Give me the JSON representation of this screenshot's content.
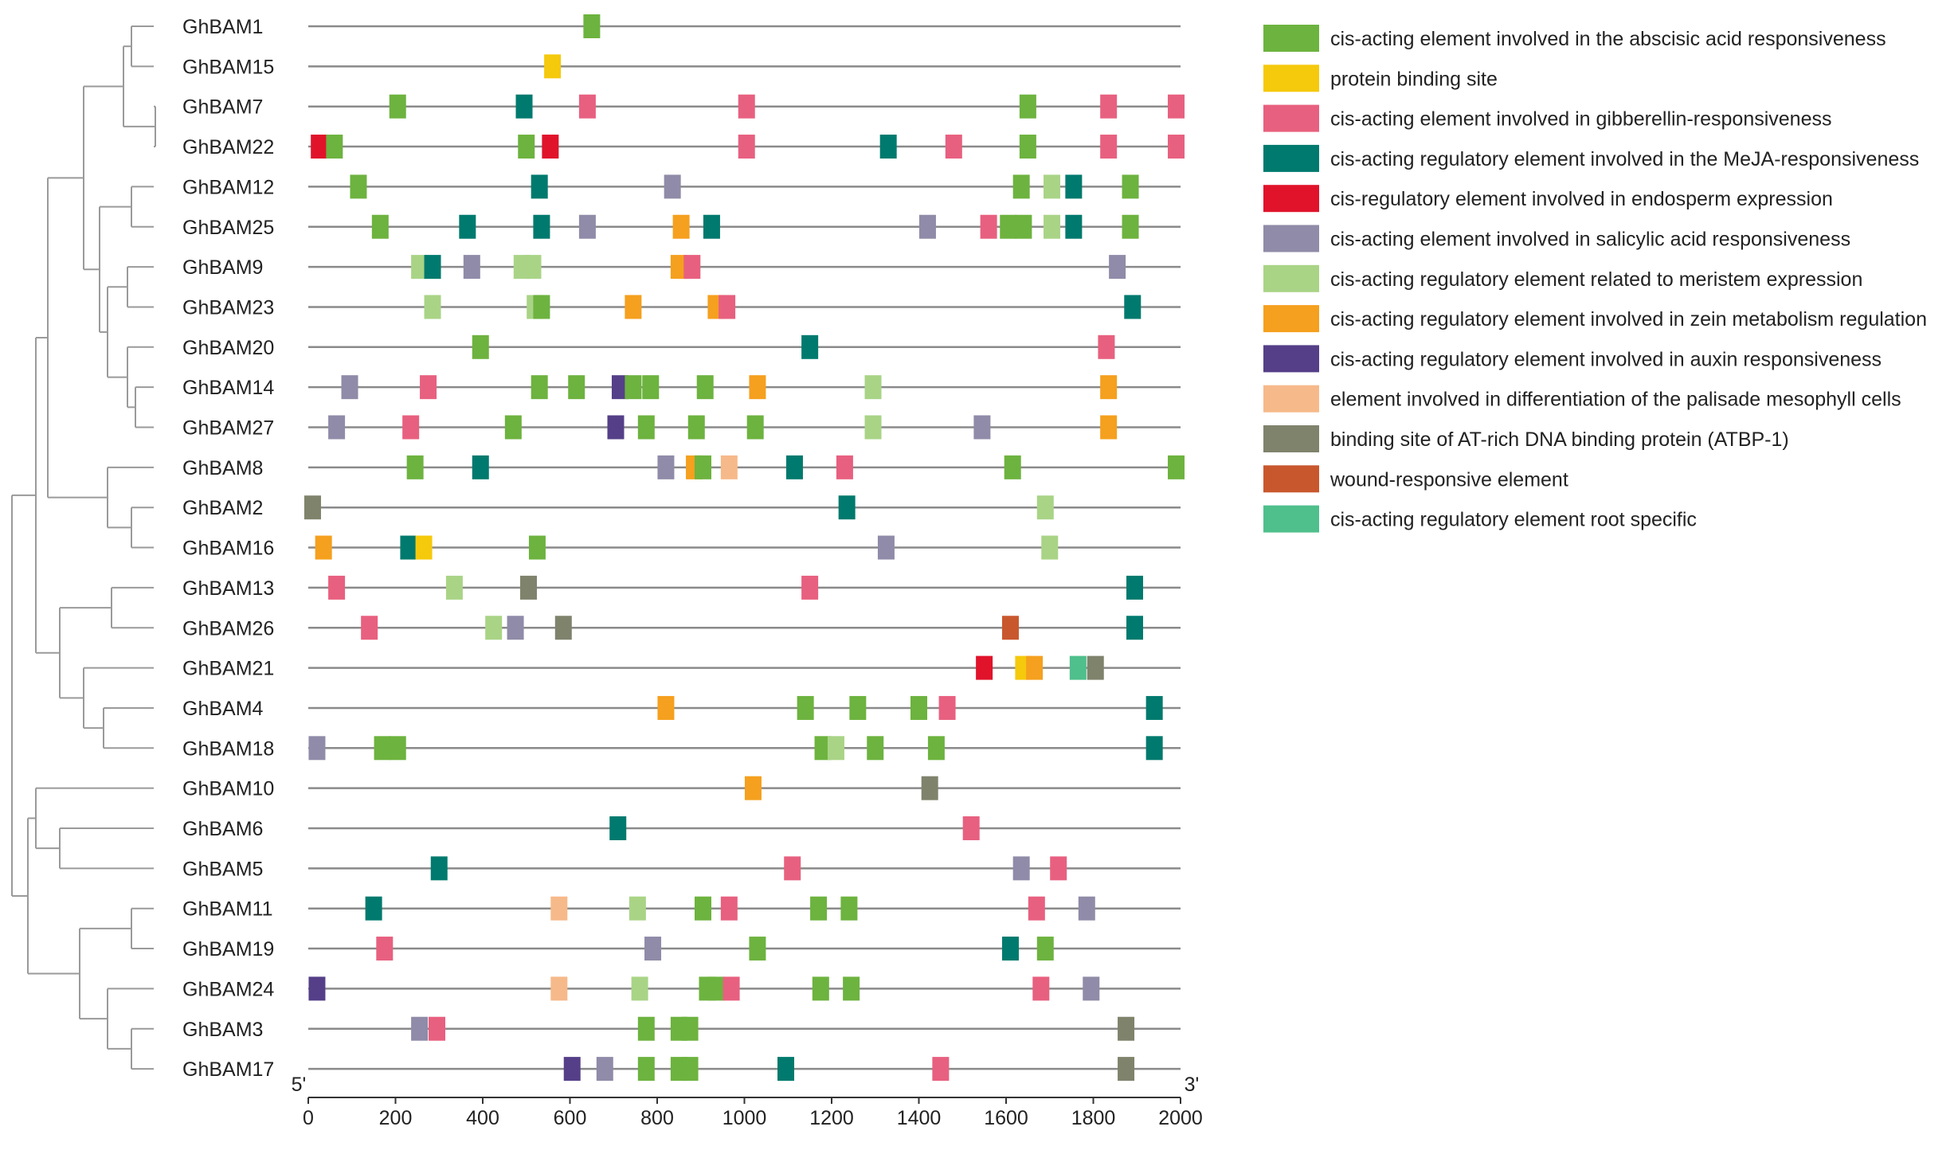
{
  "axis": {
    "start_label": "5'",
    "end_label": "3'",
    "min": 0,
    "max": 2000,
    "ticks": [
      0,
      200,
      400,
      600,
      800,
      1000,
      1200,
      1400,
      1600,
      1800,
      2000
    ]
  },
  "elements": {
    "aba": {
      "label": "cis-acting element involved in the abscisic acid responsiveness",
      "color": "#6db33f"
    },
    "pbs": {
      "label": "protein binding site",
      "color": "#f5c90c"
    },
    "ga": {
      "label": "cis-acting element involved in gibberellin-responsiveness",
      "color": "#e8607f"
    },
    "meja": {
      "label": "cis-acting regulatory element involved in the MeJA-responsiveness",
      "color": "#007a6e"
    },
    "endo": {
      "label": "cis-regulatory element involved in endosperm expression",
      "color": "#e0132b"
    },
    "sa": {
      "label": "cis-acting element involved in salicylic acid responsiveness",
      "color": "#908ba8"
    },
    "mer": {
      "label": "cis-acting regulatory element related to meristem expression",
      "color": "#a9d486"
    },
    "zein": {
      "label": "cis-acting regulatory element involved in zein metabolism regulation",
      "color": "#f5a01e"
    },
    "aux": {
      "label": "cis-acting regulatory element involved in auxin responsiveness",
      "color": "#553f88"
    },
    "pal": {
      "label": "element involved in differentiation of the palisade mesophyll cells",
      "color": "#f6b98a"
    },
    "atbp": {
      "label": "binding site of AT-rich DNA binding protein (ATBP-1)",
      "color": "#7f836c"
    },
    "wound": {
      "label": "wound-responsive element",
      "color": "#c9572e"
    },
    "root": {
      "label": "cis-acting regulatory element root specific",
      "color": "#4fbf8c"
    }
  },
  "legend_order": [
    "aba",
    "pbs",
    "ga",
    "meja",
    "endo",
    "sa",
    "mer",
    "zein",
    "aux",
    "pal",
    "atbp",
    "wound",
    "root"
  ],
  "genes": [
    {
      "name": "GhBAM1",
      "boxes": [
        [
          "aba",
          650
        ]
      ]
    },
    {
      "name": "GhBAM15",
      "boxes": [
        [
          "pbs",
          560
        ]
      ]
    },
    {
      "name": "GhBAM7",
      "boxes": [
        [
          "aba",
          205
        ],
        [
          "meja",
          495
        ],
        [
          "ga",
          640
        ],
        [
          "ga",
          1005
        ],
        [
          "aba",
          1650
        ],
        [
          "ga",
          1835
        ],
        [
          "ga",
          1990
        ]
      ]
    },
    {
      "name": "GhBAM22",
      "boxes": [
        [
          "endo",
          25
        ],
        [
          "aba",
          60
        ],
        [
          "aba",
          500
        ],
        [
          "endo",
          555
        ],
        [
          "ga",
          1005
        ],
        [
          "meja",
          1330
        ],
        [
          "ga",
          1480
        ],
        [
          "aba",
          1650
        ],
        [
          "ga",
          1835
        ],
        [
          "ga",
          1990
        ]
      ]
    },
    {
      "name": "GhBAM12",
      "boxes": [
        [
          "aba",
          115
        ],
        [
          "meja",
          530
        ],
        [
          "sa",
          835
        ],
        [
          "aba",
          1635
        ],
        [
          "mer",
          1705
        ],
        [
          "meja",
          1755
        ],
        [
          "aba",
          1885
        ]
      ]
    },
    {
      "name": "GhBAM25",
      "boxes": [
        [
          "aba",
          165
        ],
        [
          "meja",
          365
        ],
        [
          "meja",
          535
        ],
        [
          "sa",
          640
        ],
        [
          "zein",
          855
        ],
        [
          "meja",
          925
        ],
        [
          "sa",
          1420
        ],
        [
          "ga",
          1560
        ],
        [
          "aba",
          1605
        ],
        [
          "aba",
          1640
        ],
        [
          "mer",
          1705
        ],
        [
          "meja",
          1755
        ],
        [
          "aba",
          1885
        ]
      ]
    },
    {
      "name": "GhBAM9",
      "boxes": [
        [
          "mer",
          255
        ],
        [
          "meja",
          285
        ],
        [
          "sa",
          375
        ],
        [
          "mer",
          490
        ],
        [
          "mer",
          515
        ],
        [
          "zein",
          850
        ],
        [
          "ga",
          880
        ],
        [
          "sa",
          1855
        ]
      ]
    },
    {
      "name": "GhBAM23",
      "boxes": [
        [
          "mer",
          285
        ],
        [
          "mer",
          520
        ],
        [
          "aba",
          535
        ],
        [
          "zein",
          745
        ],
        [
          "zein",
          935
        ],
        [
          "ga",
          960
        ],
        [
          "meja",
          1890
        ]
      ]
    },
    {
      "name": "GhBAM20",
      "boxes": [
        [
          "aba",
          395
        ],
        [
          "meja",
          1150
        ],
        [
          "ga",
          1830
        ]
      ]
    },
    {
      "name": "GhBAM14",
      "boxes": [
        [
          "sa",
          95
        ],
        [
          "ga",
          275
        ],
        [
          "aba",
          530
        ],
        [
          "aba",
          615
        ],
        [
          "aux",
          715
        ],
        [
          "aba",
          745
        ],
        [
          "aba",
          785
        ],
        [
          "aba",
          910
        ],
        [
          "zein",
          1030
        ],
        [
          "mer",
          1295
        ],
        [
          "zein",
          1835
        ]
      ]
    },
    {
      "name": "GhBAM27",
      "boxes": [
        [
          "sa",
          65
        ],
        [
          "ga",
          235
        ],
        [
          "aba",
          470
        ],
        [
          "aux",
          705
        ],
        [
          "aba",
          775
        ],
        [
          "aba",
          890
        ],
        [
          "aba",
          1025
        ],
        [
          "mer",
          1295
        ],
        [
          "sa",
          1545
        ],
        [
          "zein",
          1835
        ]
      ]
    },
    {
      "name": "GhBAM8",
      "boxes": [
        [
          "aba",
          245
        ],
        [
          "meja",
          395
        ],
        [
          "sa",
          820
        ],
        [
          "zein",
          885
        ],
        [
          "aba",
          905
        ],
        [
          "pal",
          965
        ],
        [
          "meja",
          1115
        ],
        [
          "ga",
          1230
        ],
        [
          "aba",
          1615
        ],
        [
          "aba",
          1990
        ]
      ]
    },
    {
      "name": "GhBAM2",
      "boxes": [
        [
          "atbp",
          10
        ],
        [
          "meja",
          1235
        ],
        [
          "mer",
          1690
        ]
      ]
    },
    {
      "name": "GhBAM16",
      "boxes": [
        [
          "zein",
          35
        ],
        [
          "meja",
          230
        ],
        [
          "pbs",
          265
        ],
        [
          "aba",
          525
        ],
        [
          "sa",
          1325
        ],
        [
          "mer",
          1700
        ]
      ]
    },
    {
      "name": "GhBAM13",
      "boxes": [
        [
          "ga",
          65
        ],
        [
          "mer",
          335
        ],
        [
          "atbp",
          505
        ],
        [
          "ga",
          1150
        ],
        [
          "meja",
          1895
        ]
      ]
    },
    {
      "name": "GhBAM26",
      "boxes": [
        [
          "ga",
          140
        ],
        [
          "mer",
          425
        ],
        [
          "sa",
          475
        ],
        [
          "atbp",
          585
        ],
        [
          "wound",
          1610
        ],
        [
          "meja",
          1895
        ]
      ]
    },
    {
      "name": "GhBAM21",
      "boxes": [
        [
          "endo",
          1550
        ],
        [
          "pbs",
          1640
        ],
        [
          "zein",
          1665
        ],
        [
          "root",
          1765
        ],
        [
          "atbp",
          1805
        ]
      ]
    },
    {
      "name": "GhBAM4",
      "boxes": [
        [
          "zein",
          820
        ],
        [
          "aba",
          1140
        ],
        [
          "aba",
          1260
        ],
        [
          "aba",
          1400
        ],
        [
          "ga",
          1465
        ],
        [
          "meja",
          1940
        ]
      ]
    },
    {
      "name": "GhBAM18",
      "boxes": [
        [
          "sa",
          20
        ],
        [
          "aba",
          170
        ],
        [
          "aba",
          205
        ],
        [
          "aba",
          1180
        ],
        [
          "mer",
          1210
        ],
        [
          "aba",
          1300
        ],
        [
          "aba",
          1440
        ],
        [
          "meja",
          1940
        ]
      ]
    },
    {
      "name": "GhBAM10",
      "boxes": [
        [
          "zein",
          1020
        ],
        [
          "atbp",
          1425
        ]
      ]
    },
    {
      "name": "GhBAM6",
      "boxes": [
        [
          "meja",
          710
        ],
        [
          "ga",
          1520
        ]
      ]
    },
    {
      "name": "GhBAM5",
      "boxes": [
        [
          "meja",
          300
        ],
        [
          "ga",
          1110
        ],
        [
          "sa",
          1635
        ],
        [
          "ga",
          1720
        ]
      ]
    },
    {
      "name": "GhBAM11",
      "boxes": [
        [
          "meja",
          150
        ],
        [
          "pal",
          575
        ],
        [
          "mer",
          755
        ],
        [
          "aba",
          905
        ],
        [
          "ga",
          965
        ],
        [
          "aba",
          1170
        ],
        [
          "aba",
          1240
        ],
        [
          "ga",
          1670
        ],
        [
          "sa",
          1785
        ]
      ]
    },
    {
      "name": "GhBAM19",
      "boxes": [
        [
          "ga",
          175
        ],
        [
          "sa",
          790
        ],
        [
          "aba",
          1030
        ],
        [
          "meja",
          1610
        ],
        [
          "aba",
          1690
        ]
      ]
    },
    {
      "name": "GhBAM24",
      "boxes": [
        [
          "aux",
          20
        ],
        [
          "pal",
          575
        ],
        [
          "mer",
          760
        ],
        [
          "aba",
          915
        ],
        [
          "aba",
          935
        ],
        [
          "ga",
          970
        ],
        [
          "aba",
          1175
        ],
        [
          "aba",
          1245
        ],
        [
          "ga",
          1680
        ],
        [
          "sa",
          1795
        ]
      ]
    },
    {
      "name": "GhBAM3",
      "boxes": [
        [
          "sa",
          255
        ],
        [
          "ga",
          295
        ],
        [
          "aba",
          775
        ],
        [
          "aba",
          850
        ],
        [
          "aba",
          875
        ],
        [
          "atbp",
          1875
        ]
      ]
    },
    {
      "name": "GhBAM17",
      "boxes": [
        [
          "aux",
          605
        ],
        [
          "sa",
          680
        ],
        [
          "aba",
          775
        ],
        [
          "aba",
          850
        ],
        [
          "aba",
          875
        ],
        [
          "meja",
          1095
        ],
        [
          "ga",
          1450
        ],
        [
          "atbp",
          1875
        ]
      ]
    }
  ]
}
